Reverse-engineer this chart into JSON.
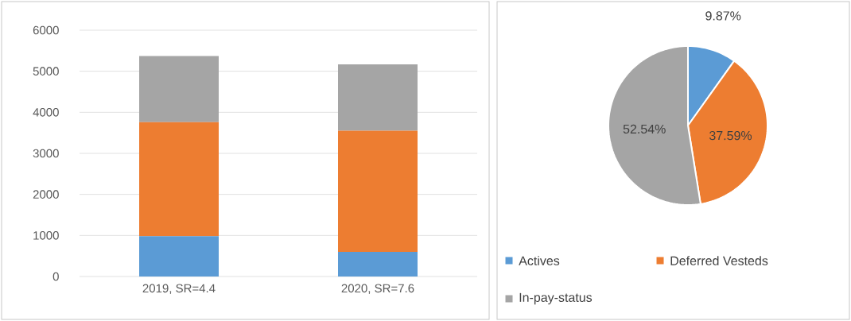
{
  "chart_data": [
    {
      "type": "bar",
      "stacked": true,
      "categories": [
        "2019, SR=4.4",
        "2020, SR=7.6"
      ],
      "series": [
        {
          "color": "#5b9bd5",
          "values": [
            980,
            600
          ]
        },
        {
          "color": "#ed7d31",
          "values": [
            2780,
            2950
          ]
        },
        {
          "color": "#a5a5a5",
          "values": [
            1610,
            1620
          ]
        }
      ],
      "ylim": [
        0,
        6000
      ],
      "yticks": [
        0,
        1000,
        2000,
        3000,
        4000,
        5000,
        6000
      ],
      "grid": "y"
    },
    {
      "type": "pie",
      "categories": [
        "Actives",
        "Deferred Vesteds",
        "In-pay-status"
      ],
      "values": [
        9.87,
        37.59,
        52.54
      ],
      "colors": [
        "#5b9bd5",
        "#ed7d31",
        "#a5a5a5"
      ],
      "value_labels": [
        "9.87%",
        "37.59%",
        "52.54%"
      ],
      "legend": "bottom"
    }
  ]
}
